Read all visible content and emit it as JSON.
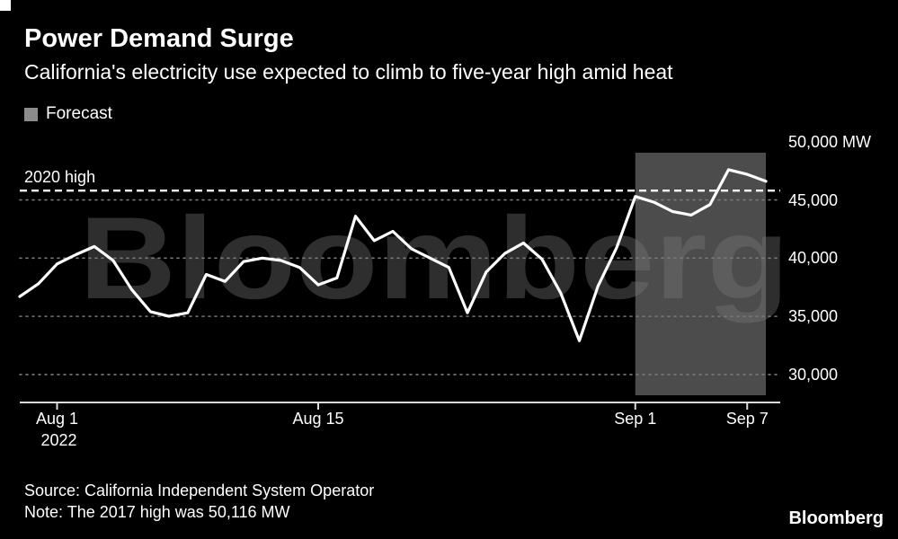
{
  "chart_data": {
    "type": "line",
    "title": "Power Demand Surge",
    "subtitle": "California's electricity use expected to climb to five-year high amid heat",
    "unit": "MW",
    "series_name": "California electricity demand",
    "grid": "dotted-horizontal",
    "legend_position": "top-left",
    "x": [
      "Jul 30",
      "Jul 31",
      "Aug 1",
      "Aug 2",
      "Aug 3",
      "Aug 4",
      "Aug 5",
      "Aug 6",
      "Aug 7",
      "Aug 8",
      "Aug 9",
      "Aug 10",
      "Aug 11",
      "Aug 12",
      "Aug 13",
      "Aug 14",
      "Aug 15",
      "Aug 16",
      "Aug 17",
      "Aug 18",
      "Aug 19",
      "Aug 20",
      "Aug 21",
      "Aug 22",
      "Aug 23",
      "Aug 24",
      "Aug 25",
      "Aug 26",
      "Aug 27",
      "Aug 28",
      "Aug 29",
      "Aug 30",
      "Aug 31",
      "Sep 1",
      "Sep 2",
      "Sep 3",
      "Sep 4",
      "Sep 5",
      "Sep 6",
      "Sep 7",
      "Sep 8"
    ],
    "values": [
      36700,
      37800,
      39500,
      40300,
      41000,
      39800,
      37300,
      35400,
      35000,
      35300,
      38600,
      38000,
      39700,
      40000,
      39800,
      39200,
      37700,
      38300,
      43600,
      41500,
      42300,
      40800,
      40000,
      39200,
      35300,
      38800,
      40400,
      41300,
      39900,
      37000,
      32900,
      37600,
      40900,
      45300,
      44800,
      44000,
      43700,
      44600,
      47600,
      47200,
      46600
    ],
    "ylim": [
      27600,
      50600
    ],
    "yticks": [
      {
        "value": 50000,
        "label": "50,000 MW",
        "gridline": false
      },
      {
        "value": 45000,
        "label": "45,000",
        "gridline": true
      },
      {
        "value": 40000,
        "label": "40,000",
        "gridline": true
      },
      {
        "value": 35000,
        "label": "35,000",
        "gridline": true
      },
      {
        "value": 30000,
        "label": "30,000",
        "gridline": true
      }
    ],
    "xticks": [
      {
        "index": 2,
        "label": "Aug 1",
        "sublabel": "2022"
      },
      {
        "index": 16,
        "label": "Aug 15"
      },
      {
        "index": 33,
        "label": "Sep 1"
      },
      {
        "index": 39,
        "label": "Sep 7"
      }
    ],
    "reference_line": {
      "label": "2020 high",
      "value": 45800
    },
    "forecast": {
      "label": "Forecast",
      "start_index": 33
    }
  },
  "watermark": "Bloomberg",
  "footer": {
    "source": "Source: California Independent System Operator",
    "note": "Note: The 2017 high was 50,116 MW",
    "logo": "Bloomberg"
  },
  "colors": {
    "background": "#000000",
    "text": "#ffffff",
    "line": "#ffffff",
    "forecast_band": "#7a7a7a",
    "legend_swatch": "#8c8c8c",
    "watermark": "#2e2e2e",
    "gridline": "#7a7a7a",
    "axis": "#dcdcdc",
    "reference_line": "#ffffff"
  }
}
